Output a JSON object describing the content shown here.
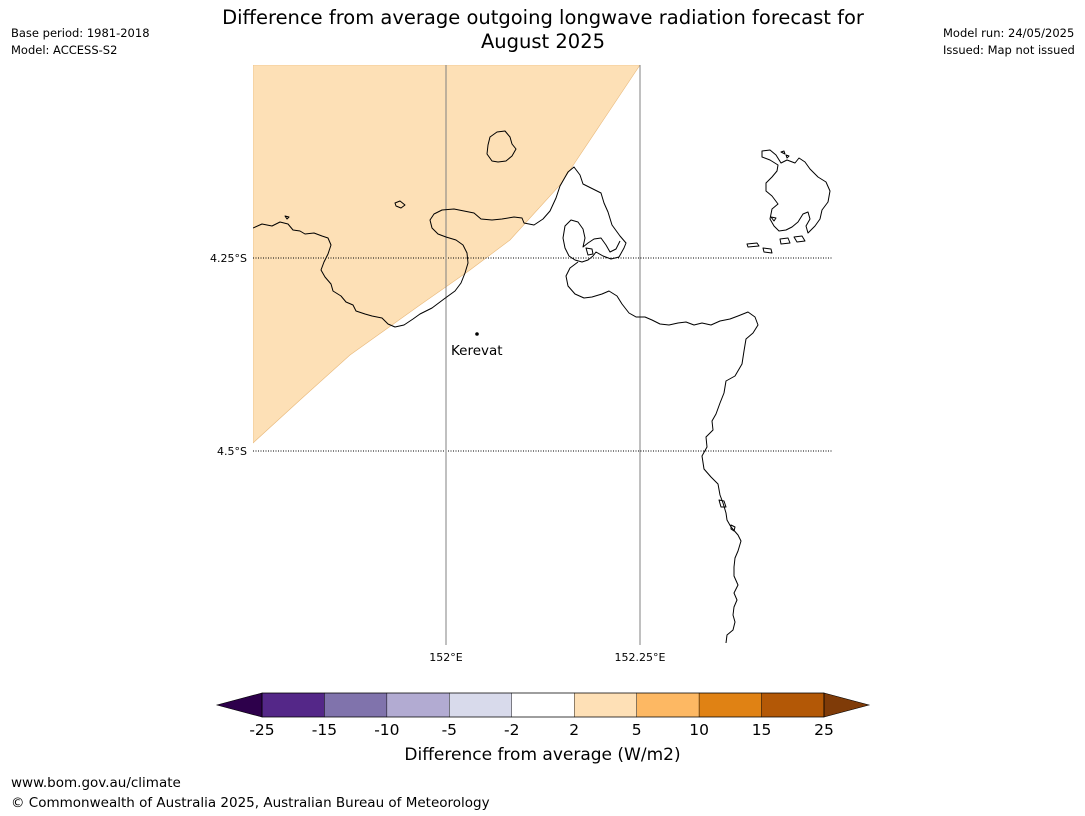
{
  "header": {
    "title_line1": "Difference from average outgoing longwave radiation forecast for",
    "title_line2": "August 2025",
    "base_period": "Base period: 1981-2018",
    "model": "Model: ACCESS-S2",
    "model_run": "Model run: 24/05/2025",
    "issued": "Issued: Map not issued"
  },
  "map": {
    "lat_labels": [
      "4.25°S",
      "4.5°S"
    ],
    "lon_labels": [
      "152°E",
      "152.25°E"
    ],
    "place": {
      "name": "Kerevat"
    },
    "anomaly_fill_color": "#fde0b6",
    "coastline_color": "#000000"
  },
  "colorbar": {
    "title": "Difference from average (W/m2)",
    "tick_labels": [
      "-25",
      "-15",
      "-10",
      "-5",
      "-2",
      "2",
      "5",
      "10",
      "15",
      "25"
    ],
    "colors": [
      "#542788",
      "#8073ac",
      "#b2abd2",
      "#d8daeb",
      "#ffffff",
      "#fee0b6",
      "#fdb863",
      "#e08214",
      "#b35806"
    ],
    "under_color": "#2d004b",
    "over_color": "#7f3b08"
  },
  "footer": {
    "url": "www.bom.gov.au/climate",
    "copyright": "© Commonwealth of Australia 2025, Australian Bureau of Meteorology"
  }
}
